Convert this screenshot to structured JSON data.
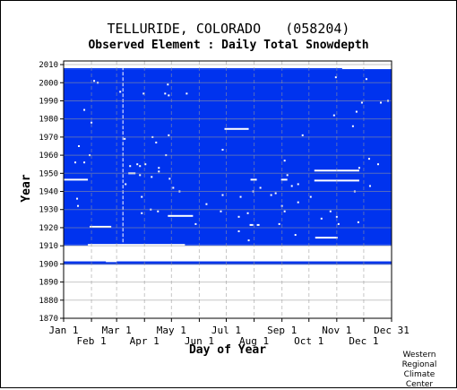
{
  "header": {
    "station": "TELLURIDE, COLORADO",
    "station_id": "(058204)"
  },
  "credit": [
    "Western",
    "Regional",
    "Climate",
    "Center"
  ],
  "colors": {
    "data_fill": "#0033ee",
    "grid": "#999999",
    "missing_marker": "#ffffff"
  },
  "chart_data": {
    "type": "heatmap",
    "title": "Observed Element : Daily Total Snowdepth",
    "xlabel": "Day of Year",
    "ylabel": "Year",
    "ylim": [
      1870,
      2012
    ],
    "xlim": [
      1,
      366
    ],
    "y_ticks": [
      1870,
      1880,
      1890,
      1900,
      1910,
      1920,
      1930,
      1940,
      1950,
      1960,
      1970,
      1980,
      1990,
      2000,
      2010
    ],
    "x_ticks_upper": [
      {
        "label": "Jan 1",
        "day": 1
      },
      {
        "label": "Mar 1",
        "day": 60
      },
      {
        "label": "May 1",
        "day": 121
      },
      {
        "label": "Jul 1",
        "day": 182
      },
      {
        "label": "Sep 1",
        "day": 244
      },
      {
        "label": "Nov 1",
        "day": 305
      },
      {
        "label": "Dec 31",
        "day": 366
      }
    ],
    "x_ticks_lower": [
      {
        "label": "Feb 1",
        "day": 32
      },
      {
        "label": "Apr 1",
        "day": 91
      },
      {
        "label": "Jun 1",
        "day": 152
      },
      {
        "label": "Aug 1",
        "day": 213
      },
      {
        "label": "Oct 1",
        "day": 274
      },
      {
        "label": "Dec 1",
        "day": 335
      }
    ],
    "observed_periods": [
      {
        "year_start": 1899.6,
        "year_end": 1901.4,
        "day_start": 1,
        "day_end": 366
      },
      {
        "year_start": 1911,
        "year_end": 2007.5,
        "day_start": 1,
        "day_end": 366
      },
      {
        "year_start": 1910.2,
        "year_end": 1911,
        "day_start": 1,
        "day_end": 28
      },
      {
        "year_start": 1910.2,
        "year_end": 1911,
        "day_start": 136,
        "day_end": 366
      },
      {
        "year_start": 2007.5,
        "year_end": 2008,
        "day_start": 1,
        "day_end": 311
      }
    ],
    "missing_runs": [
      {
        "year": 1974.5,
        "day_start": 180,
        "day_end": 207
      },
      {
        "year": 1951.5,
        "day_start": 280,
        "day_end": 330
      },
      {
        "year": 1946,
        "day_start": 280,
        "day_end": 330
      },
      {
        "year": 1946.5,
        "day_start": 1,
        "day_end": 28
      },
      {
        "year": 1946.5,
        "day_start": 243,
        "day_end": 250
      },
      {
        "year": 1946.5,
        "day_start": 209,
        "day_end": 216
      },
      {
        "year": 1950,
        "day_start": 73,
        "day_end": 81
      },
      {
        "year": 1926.5,
        "day_start": 117,
        "day_end": 145
      },
      {
        "year": 1920.5,
        "day_start": 30,
        "day_end": 54
      },
      {
        "year": 1914.5,
        "day_start": 281,
        "day_end": 306
      },
      {
        "year": 1921.5,
        "day_start": 208,
        "day_end": 212
      },
      {
        "year": 1921.5,
        "day_start": 216,
        "day_end": 219
      },
      {
        "year": 1903.5,
        "day_start": 125,
        "day_end": 178
      },
      {
        "year": 1903.5,
        "day_start": 212,
        "day_end": 236
      },
      {
        "year": 1901.5,
        "day_start": 48,
        "day_end": 60
      },
      {
        "year": 2008.5,
        "day_start": 311,
        "day_end": 366
      }
    ],
    "missing_points": [
      {
        "year": 2001,
        "day": 35
      },
      {
        "year": 2000,
        "day": 39
      },
      {
        "year": 1995,
        "day": 64
      },
      {
        "year": 1994,
        "day": 90
      },
      {
        "year": 1994,
        "day": 114
      },
      {
        "year": 1999,
        "day": 117
      },
      {
        "year": 1994,
        "day": 138
      },
      {
        "year": 1993,
        "day": 118
      },
      {
        "year": 1985,
        "day": 24
      },
      {
        "year": 1978,
        "day": 32
      },
      {
        "year": 1969,
        "day": 69
      },
      {
        "year": 1967,
        "day": 104
      },
      {
        "year": 1970,
        "day": 100
      },
      {
        "year": 1971,
        "day": 118
      },
      {
        "year": 1965,
        "day": 18
      },
      {
        "year": 1960,
        "day": 30
      },
      {
        "year": 1960,
        "day": 115
      },
      {
        "year": 1956,
        "day": 14
      },
      {
        "year": 1956,
        "day": 24
      },
      {
        "year": 1954,
        "day": 75
      },
      {
        "year": 1954,
        "day": 86
      },
      {
        "year": 1955,
        "day": 92
      },
      {
        "year": 1955,
        "day": 83
      },
      {
        "year": 1953,
        "day": 107
      },
      {
        "year": 1951,
        "day": 107
      },
      {
        "year": 1949,
        "day": 86
      },
      {
        "year": 1948,
        "day": 99
      },
      {
        "year": 1947,
        "day": 119
      },
      {
        "year": 1944,
        "day": 70
      },
      {
        "year": 1942,
        "day": 123
      },
      {
        "year": 1940,
        "day": 130
      },
      {
        "year": 1937,
        "day": 88
      },
      {
        "year": 1936,
        "day": 16
      },
      {
        "year": 1932,
        "day": 17
      },
      {
        "year": 1930,
        "day": 98
      },
      {
        "year": 1929,
        "day": 106
      },
      {
        "year": 1928,
        "day": 88
      },
      {
        "year": 1933,
        "day": 160
      },
      {
        "year": 1938,
        "day": 178
      },
      {
        "year": 1937,
        "day": 198
      },
      {
        "year": 1940,
        "day": 212
      },
      {
        "year": 1942,
        "day": 220
      },
      {
        "year": 1938,
        "day": 232
      },
      {
        "year": 1939,
        "day": 237
      },
      {
        "year": 1943,
        "day": 255
      },
      {
        "year": 1944,
        "day": 262
      },
      {
        "year": 1937,
        "day": 276
      },
      {
        "year": 1934,
        "day": 262
      },
      {
        "year": 1929,
        "day": 298
      },
      {
        "year": 1926,
        "day": 305
      },
      {
        "year": 1925,
        "day": 288
      },
      {
        "year": 1923,
        "day": 329
      },
      {
        "year": 1922,
        "day": 307
      },
      {
        "year": 1928,
        "day": 206
      },
      {
        "year": 1932,
        "day": 244
      },
      {
        "year": 1929,
        "day": 247
      },
      {
        "year": 1922,
        "day": 241
      },
      {
        "year": 1926,
        "day": 196
      },
      {
        "year": 1929,
        "day": 176
      },
      {
        "year": 1918,
        "day": 196
      },
      {
        "year": 1913,
        "day": 207
      },
      {
        "year": 1916,
        "day": 259
      },
      {
        "year": 1963,
        "day": 178
      },
      {
        "year": 1957,
        "day": 247
      },
      {
        "year": 1971,
        "day": 267
      },
      {
        "year": 1949,
        "day": 250
      },
      {
        "year": 1953,
        "day": 330
      },
      {
        "year": 1958,
        "day": 341
      },
      {
        "year": 1955,
        "day": 351
      },
      {
        "year": 1940,
        "day": 325
      },
      {
        "year": 1943,
        "day": 342
      },
      {
        "year": 1922,
        "day": 148
      },
      {
        "year": 2003,
        "day": 304
      },
      {
        "year": 2002,
        "day": 338
      },
      {
        "year": 1989,
        "day": 333
      },
      {
        "year": 1989,
        "day": 354
      },
      {
        "year": 1990,
        "day": 362
      },
      {
        "year": 1984,
        "day": 327
      },
      {
        "year": 1976,
        "day": 323
      },
      {
        "year": 1982,
        "day": 302
      }
    ],
    "missing_vertical": [
      {
        "day": 67,
        "year_start": 1903,
        "year_end": 2010
      }
    ],
    "partial_year_top_row": {
      "year": 2009.5,
      "day_start": 1,
      "day_end": 366
    }
  }
}
